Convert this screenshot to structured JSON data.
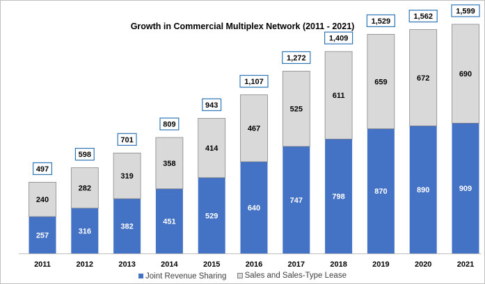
{
  "chart_data": {
    "type": "bar",
    "stacked": true,
    "title": "Growth in Commercial Multiplex Network (2011 - 2021)",
    "xlabel": "",
    "ylabel": "",
    "categories": [
      "2011",
      "2012",
      "2013",
      "2014",
      "2015",
      "2016",
      "2017",
      "2018",
      "2019",
      "2020",
      "2021"
    ],
    "series": [
      {
        "name": "Joint Revenue Sharing",
        "color": "#4472c4",
        "label_color": "#ffffff",
        "values": [
          257,
          316,
          382,
          451,
          529,
          640,
          747,
          798,
          870,
          890,
          909
        ]
      },
      {
        "name": "Sales and Sales-Type Lease",
        "color": "#d9d9d9",
        "label_color": "#000000",
        "values": [
          240,
          282,
          319,
          358,
          414,
          467,
          525,
          611,
          659,
          672,
          690
        ]
      }
    ],
    "totals": [
      "497",
      "598",
      "701",
      "809",
      "943",
      "1,107",
      "1,272",
      "1,409",
      "1,529",
      "1,562",
      "1,599"
    ],
    "ylim": [
      0,
      1650
    ],
    "grid": false,
    "legend": "bottom",
    "total_box_color": "#2e75b6"
  }
}
